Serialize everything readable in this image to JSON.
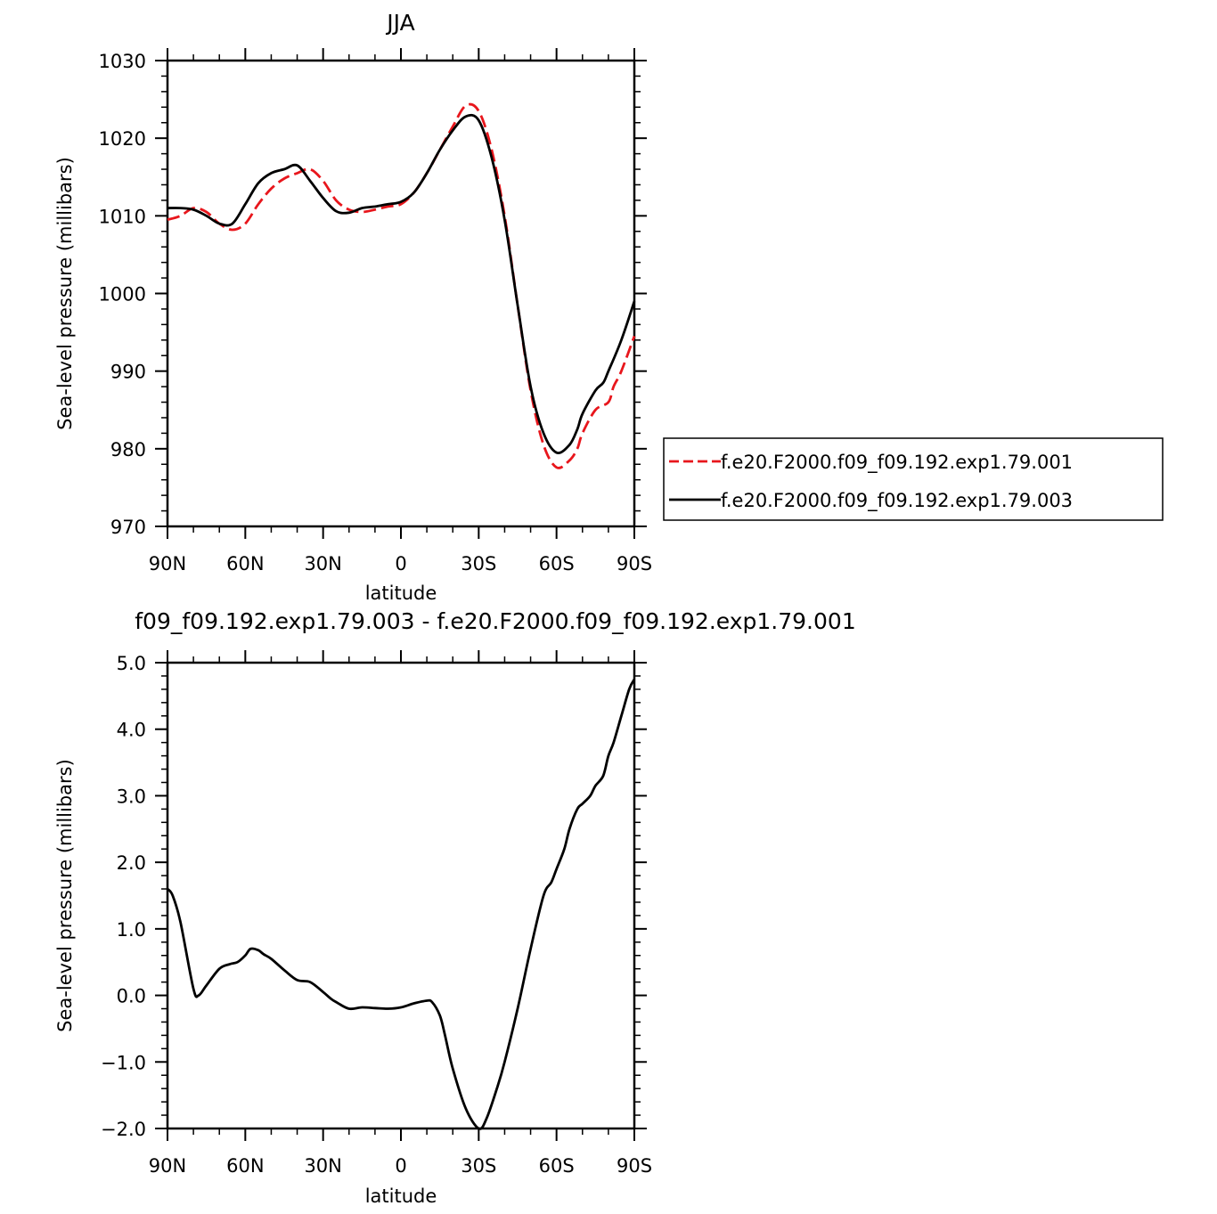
{
  "chart_data": [
    {
      "type": "line",
      "title": "JJA",
      "xlabel": "latitude",
      "ylabel": "Sea-level pressure (millibars)",
      "x_ticks": [
        90,
        60,
        30,
        0,
        -30,
        -60,
        -90
      ],
      "x_tick_labels": [
        "90N",
        "60N",
        "30N",
        "0",
        "30S",
        "60S",
        "90S"
      ],
      "xlim": [
        90,
        -90
      ],
      "ylim": [
        970,
        1030
      ],
      "y_ticks": [
        970,
        980,
        990,
        1000,
        1010,
        1020,
        1030
      ],
      "y_tick_labels": [
        "970",
        "980",
        "990",
        "1000",
        "1010",
        "1020",
        "1030"
      ],
      "grid": false,
      "legend_position": "right",
      "series": [
        {
          "name": "f.e20.F2000.f09_f09.192.exp1.79.001",
          "color": "#e8161c",
          "dash": "dashed",
          "x": [
            90,
            85,
            80,
            75,
            70,
            65,
            60,
            55,
            50,
            45,
            40,
            35,
            30,
            25,
            20,
            15,
            10,
            5,
            0,
            -5,
            -10,
            -15,
            -20,
            -25,
            -30,
            -35,
            -40,
            -45,
            -50,
            -55,
            -60,
            -65,
            -68,
            -70,
            -75,
            -80,
            -82,
            -85,
            -90
          ],
          "y": [
            1009.5,
            1010.0,
            1011.0,
            1010.5,
            1009.0,
            1008.2,
            1009.0,
            1011.5,
            1013.5,
            1014.8,
            1015.5,
            1016.0,
            1014.5,
            1012.0,
            1010.8,
            1010.5,
            1010.8,
            1011.2,
            1011.5,
            1013.0,
            1015.5,
            1018.5,
            1021.5,
            1024.2,
            1023.5,
            1018.5,
            1010.0,
            998.5,
            987.5,
            980.5,
            977.6,
            978.5,
            980.0,
            982.0,
            985.0,
            986.0,
            988.0,
            990.0,
            994.5
          ]
        },
        {
          "name": "f.e20.F2000.f09_f09.192.exp1.79.003",
          "color": "#000000",
          "dash": "solid",
          "x": [
            90,
            85,
            80,
            75,
            70,
            65,
            60,
            55,
            50,
            45,
            40,
            35,
            30,
            25,
            20,
            15,
            10,
            5,
            0,
            -5,
            -10,
            -15,
            -20,
            -25,
            -30,
            -35,
            -40,
            -45,
            -50,
            -55,
            -60,
            -65,
            -68,
            -70,
            -75,
            -78,
            -80,
            -85,
            -90
          ],
          "y": [
            1011.0,
            1011.0,
            1010.8,
            1010.0,
            1009.0,
            1009.0,
            1011.5,
            1014.2,
            1015.5,
            1016.0,
            1016.5,
            1014.5,
            1012.3,
            1010.6,
            1010.4,
            1011.0,
            1011.2,
            1011.5,
            1011.8,
            1013.0,
            1015.5,
            1018.5,
            1021.0,
            1022.8,
            1022.3,
            1017.5,
            1009.5,
            998.5,
            988.0,
            982.0,
            979.5,
            980.5,
            982.5,
            984.5,
            987.5,
            988.5,
            990.0,
            994.0,
            999.0
          ]
        }
      ]
    },
    {
      "type": "line",
      "title": "f09_f09.192.exp1.79.003 - f.e20.F2000.f09_f09.192.exp1.79.001",
      "xlabel": "latitude",
      "ylabel": "Sea-level pressure (millibars)",
      "x_ticks": [
        90,
        60,
        30,
        0,
        -30,
        -60,
        -90
      ],
      "x_tick_labels": [
        "90N",
        "60N",
        "30N",
        "0",
        "30S",
        "60S",
        "90S"
      ],
      "xlim": [
        90,
        -90
      ],
      "ylim": [
        -2.0,
        5.0
      ],
      "y_ticks": [
        -2.0,
        -1.0,
        0.0,
        1.0,
        2.0,
        3.0,
        4.0,
        5.0
      ],
      "y_tick_labels": [
        "−2.0",
        "−1.0",
        "0.0",
        "1.0",
        "2.0",
        "3.0",
        "4.0",
        "5.0"
      ],
      "grid": false,
      "series": [
        {
          "color": "#000000",
          "dash": "solid",
          "x": [
            90,
            88,
            85,
            80,
            78,
            75,
            70,
            66,
            63,
            60,
            58,
            55,
            53,
            50,
            45,
            40,
            35,
            30,
            27,
            25,
            20,
            15,
            10,
            5,
            0,
            -5,
            -10,
            -12,
            -15,
            -17,
            -20,
            -25,
            -30,
            -33,
            -37,
            -40,
            -45,
            -50,
            -55,
            -58,
            -60,
            -63,
            -65,
            -68,
            -70,
            -73,
            -75,
            -78,
            -80,
            -82,
            -85,
            -88,
            -90
          ],
          "y": [
            1.6,
            1.5,
            1.1,
            0.1,
            0.0,
            0.15,
            0.4,
            0.47,
            0.5,
            0.6,
            0.7,
            0.68,
            0.62,
            0.55,
            0.38,
            0.23,
            0.2,
            0.05,
            -0.05,
            -0.1,
            -0.2,
            -0.18,
            -0.19,
            -0.2,
            -0.18,
            -0.12,
            -0.08,
            -0.1,
            -0.3,
            -0.6,
            -1.1,
            -1.7,
            -2.0,
            -1.85,
            -1.4,
            -1.0,
            -0.2,
            0.7,
            1.5,
            1.7,
            1.9,
            2.2,
            2.5,
            2.8,
            2.88,
            3.0,
            3.15,
            3.3,
            3.6,
            3.8,
            4.2,
            4.6,
            4.75
          ]
        }
      ]
    }
  ]
}
